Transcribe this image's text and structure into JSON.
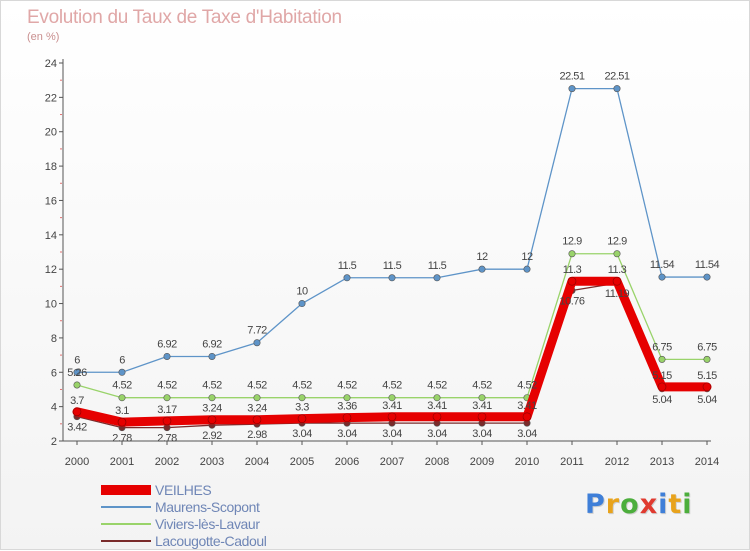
{
  "header": {
    "title": "Evolution du Taux de Taxe d'Habitation",
    "subtitle": "(en %)"
  },
  "chart_data": {
    "type": "line",
    "categories": [
      "2000",
      "2001",
      "2002",
      "2003",
      "2004",
      "2005",
      "2006",
      "2007",
      "2008",
      "2009",
      "2010",
      "2011",
      "2012",
      "2013",
      "2014"
    ],
    "ylim": [
      2,
      24
    ],
    "yticks": [
      2,
      4,
      6,
      8,
      10,
      12,
      14,
      16,
      18,
      20,
      22,
      24
    ],
    "grid": false,
    "legend_position": "bottom-left",
    "series": [
      {
        "name": "VEILHES",
        "color": "#e60000",
        "values": [
          3.7,
          3.1,
          3.17,
          3.24,
          3.24,
          3.3,
          3.36,
          3.41,
          3.41,
          3.41,
          3.41,
          11.3,
          11.3,
          5.15,
          5.15
        ],
        "labels": [
          "3.7",
          "3.1",
          "3.17",
          "3.24",
          "3.24",
          "3.3",
          "3.36",
          "3.41",
          "3.41",
          "3.41",
          "3.41",
          "11.3",
          "11.3",
          "5.15",
          "5.15"
        ]
      },
      {
        "name": "Maurens-Scopont",
        "color": "#5e94c8",
        "values": [
          6,
          6,
          6.92,
          6.92,
          7.72,
          10,
          11.5,
          11.5,
          11.5,
          12,
          12,
          22.51,
          22.51,
          11.54,
          11.54
        ],
        "labels": [
          "6",
          "6",
          "6.92",
          "6.92",
          "7.72",
          "10",
          "11.5",
          "11.5",
          "11.5",
          "12",
          "12",
          "22.51",
          "22.51",
          "11.54",
          "11.54"
        ]
      },
      {
        "name": "Viviers-lès-Lavaur",
        "color": "#99d36a",
        "values": [
          5.26,
          4.52,
          4.52,
          4.52,
          4.52,
          4.52,
          4.52,
          4.52,
          4.52,
          4.52,
          4.52,
          12.9,
          12.9,
          6.75,
          6.75
        ],
        "labels": [
          "5.26",
          "4.52",
          "4.52",
          "4.52",
          "4.52",
          "4.52",
          "4.52",
          "4.52",
          "4.52",
          "4.52",
          "4.52",
          "12.9",
          "12.9",
          "6.75",
          "6.75"
        ]
      },
      {
        "name": "Lacougotte-Cadoul",
        "color": "#7a2b2b",
        "values": [
          3.42,
          2.78,
          2.78,
          2.92,
          2.98,
          3.04,
          3.04,
          3.04,
          3.04,
          3.04,
          3.04,
          10.76,
          11.19,
          5.04,
          5.04
        ],
        "labels": [
          "3.42",
          "2.78",
          "2.78",
          "2.92",
          "2.98",
          "3.04",
          "3.04",
          "3.04",
          "3.04",
          "3.04",
          "3.04",
          "10.76",
          "11.19",
          "5.04",
          "5.04"
        ]
      }
    ]
  },
  "legend": {
    "items": [
      {
        "label": "VEILHES",
        "color": "#e60000"
      },
      {
        "label": "Maurens-Scopont",
        "color": "#5e94c8"
      },
      {
        "label": "Viviers-lès-Lavaur",
        "color": "#99d36a"
      },
      {
        "label": "Lacougotte-Cadoul",
        "color": "#7a2b2b"
      }
    ]
  },
  "logo": {
    "text": "Proxiti",
    "letters": [
      {
        "char": "P",
        "color": "#3f7fd8"
      },
      {
        "char": "r",
        "color": "#e8a31c"
      },
      {
        "char": "o",
        "color": "#4cae3c"
      },
      {
        "char": "x",
        "color": "#e03a2f"
      },
      {
        "char": "i",
        "color": "#3f7fd8"
      },
      {
        "char": "t",
        "color": "#e8a31c"
      },
      {
        "char": "i",
        "color": "#4cae3c"
      }
    ]
  }
}
